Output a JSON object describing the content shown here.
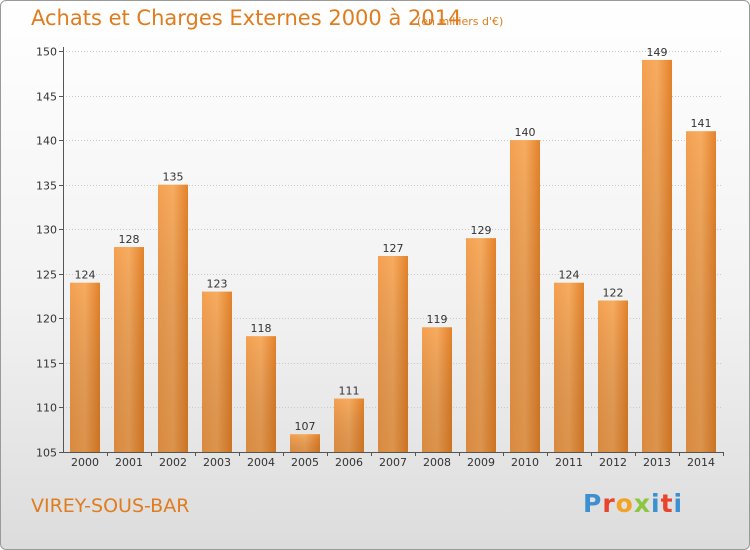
{
  "header": {
    "title": "Achats et Charges Externes 2000 à 2014",
    "unit": "(en milliers d'€)"
  },
  "footer": {
    "commune": "VIREY-SOUS-BAR",
    "logo": [
      "P",
      "r",
      "o",
      "x",
      "i",
      "t",
      "i"
    ]
  },
  "colors": {
    "accent": "#e07c1e",
    "bar_light": "#f7a85a",
    "bar_dark": "#d8711c",
    "logo_letters": [
      "#3c8fd0",
      "#e8452c",
      "#f2a324",
      "#8dc63f",
      "#3c8fd0",
      "#e8452c",
      "#3c8fd0"
    ]
  },
  "chart_data": {
    "type": "bar",
    "title": "Achats et Charges Externes 2000 à 2014",
    "subtitle": "(en milliers d'€)",
    "xlabel": "",
    "ylabel": "",
    "categories": [
      "2000",
      "2001",
      "2002",
      "2003",
      "2004",
      "2005",
      "2006",
      "2007",
      "2008",
      "2009",
      "2010",
      "2011",
      "2012",
      "2013",
      "2014"
    ],
    "values": [
      124,
      128,
      135,
      123,
      118,
      107,
      111,
      127,
      119,
      129,
      140,
      124,
      122,
      149,
      141
    ],
    "ylim": [
      105,
      150
    ],
    "yticks": [
      105,
      110,
      115,
      120,
      125,
      130,
      135,
      140,
      145,
      150
    ],
    "grid": true,
    "legend": "none"
  }
}
